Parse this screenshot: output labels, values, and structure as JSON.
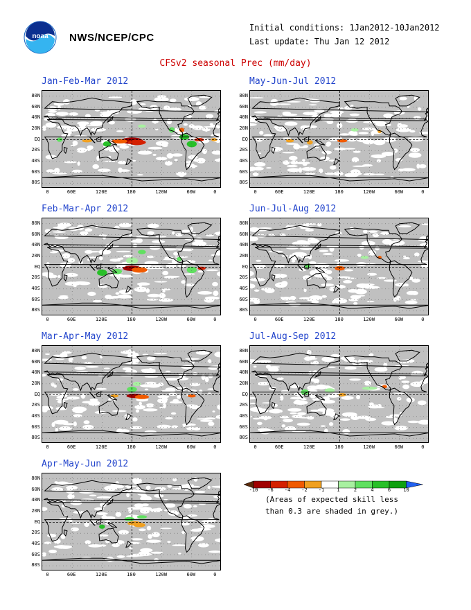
{
  "header": {
    "org": "NWS/NCEP/CPC",
    "initial_conditions": "Initial conditions: 1Jan2012-10Jan2012",
    "last_update": "Last update: Thu Jan 12 2012",
    "title": "CFSv2 seasonal Prec (mm/day)"
  },
  "logo": {
    "icon": "noaa-logo-icon",
    "text": "noaa"
  },
  "lat_labels": [
    "80N",
    "60N",
    "40N",
    "20N",
    "EQ",
    "20S",
    "40S",
    "60S",
    "80S"
  ],
  "lon_labels": [
    "0",
    "60E",
    "120E",
    "180",
    "120W",
    "60W",
    "0"
  ],
  "panels": [
    {
      "title": "Jan-Feb-Mar 2012",
      "key": "jfm"
    },
    {
      "title": "May-Jun-Jul 2012",
      "key": "mjj"
    },
    {
      "title": "Feb-Mar-Apr 2012",
      "key": "fma"
    },
    {
      "title": "Jun-Jul-Aug 2012",
      "key": "jja"
    },
    {
      "title": "Mar-Apr-May 2012",
      "key": "mam"
    },
    {
      "title": "Jul-Aug-Sep 2012",
      "key": "jas"
    },
    {
      "title": "Apr-May-Jun 2012",
      "key": "amj"
    }
  ],
  "colorbar": {
    "labels": [
      "-10",
      "-6",
      "-4",
      "-2",
      "-1",
      "1",
      "2",
      "4",
      "6",
      "10"
    ],
    "colors": [
      "#5a2a0a",
      "#a00000",
      "#d42000",
      "#f05a00",
      "#f0a020",
      "#ffffff",
      "#a8f0a0",
      "#60e060",
      "#28c028",
      "#10a010",
      "#2060f0"
    ],
    "note_line1": "(Areas of expected skill less",
    "note_line2": "than 0.3 are shaded in grey.)"
  },
  "colors": {
    "title_red": "#cc0000",
    "panel_title_blue": "#2244cc",
    "skill_grey": "#c0c0c0"
  }
}
